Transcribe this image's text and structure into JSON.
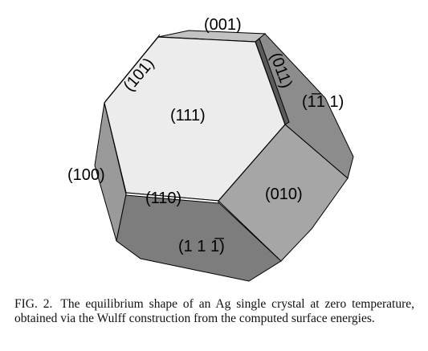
{
  "figure": {
    "facets": {
      "f111_front": "(111)",
      "f001": "(001)",
      "f101": "(101)",
      "f011": "(011)",
      "f_bar1_11": "(1̅1 1)",
      "f100": "(100)",
      "f010": "(010)",
      "f110": "(110)",
      "f11_bar1": "(1 1 1̅)"
    },
    "colors": {
      "front_face": "#ececec",
      "top_face": "#c2c2c2",
      "right_face": "#8c8c8c",
      "lower_right_face": "#a6a6a6",
      "left_face": "#9a9a9a",
      "bottom_face": "#7d7d7d",
      "edge": "#000000"
    }
  },
  "caption": {
    "fig_number": "FIG. 2.",
    "text": "The equilibrium shape of an Ag single crystal at zero temperature, obtained via the Wulff construction from the computed surface energies."
  }
}
